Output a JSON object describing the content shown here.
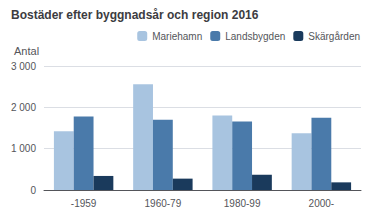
{
  "chart_data": {
    "type": "bar",
    "title": "Bostäder efter byggnadsår och region 2016",
    "ylabel": "Antal",
    "categories": [
      "-1959",
      "1960-79",
      "1980-99",
      "2000-"
    ],
    "series": [
      {
        "name": "Mariehamn",
        "color": "#a8c4e0",
        "values": [
          1420,
          2560,
          1800,
          1370
        ]
      },
      {
        "name": "Landsbygden",
        "color": "#4a7aaa",
        "values": [
          1780,
          1700,
          1660,
          1750
        ]
      },
      {
        "name": "Skärgården",
        "color": "#1a3a5c",
        "values": [
          340,
          275,
          370,
          185
        ]
      }
    ],
    "ylim": [
      0,
      3000
    ],
    "yticks": [
      0,
      {
        "value": 1000,
        "label": "1 000"
      },
      {
        "value": 2000,
        "label": "2 000"
      },
      {
        "value": 3000,
        "label": "3 000"
      }
    ],
    "grid": true,
    "legend": "upper right"
  }
}
